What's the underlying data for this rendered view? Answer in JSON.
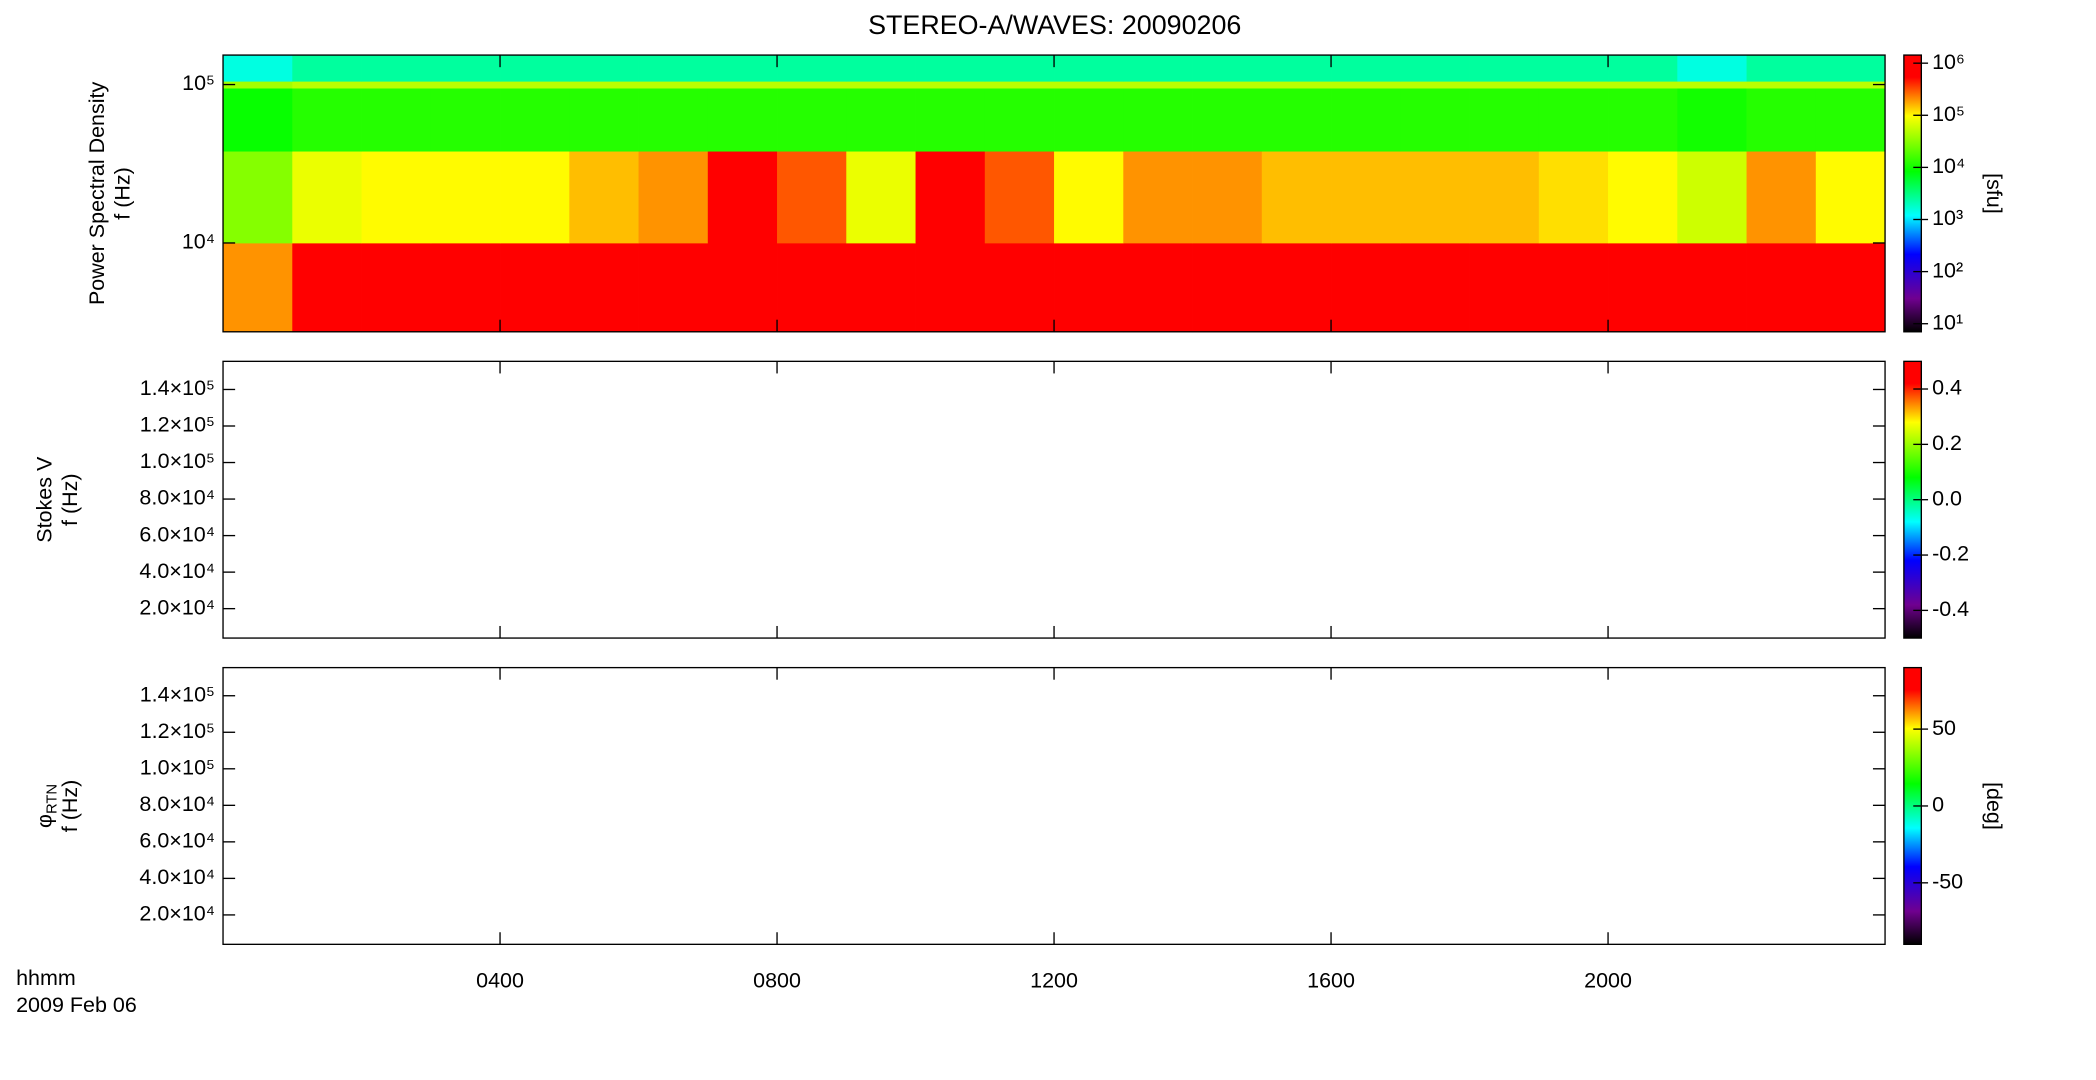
{
  "title": "STEREO-A/WAVES: 20090206",
  "chart_data": [
    {
      "type": "heatmap",
      "y_label": "Power Spectral Density",
      "y_unit_label": "f (Hz)",
      "ylog": true,
      "ylim": [
        2750,
        153500
      ],
      "yticks": [
        {
          "value": 10000,
          "label": "10⁴"
        },
        {
          "value": 100000,
          "label": "10⁵"
        }
      ],
      "xlim": [
        0,
        24
      ],
      "x_bins": [
        0,
        1,
        2,
        3,
        4,
        5,
        6,
        7,
        8,
        9,
        10,
        11,
        12,
        13,
        14,
        15,
        16,
        17,
        18,
        19,
        20,
        21,
        22,
        23,
        24
      ],
      "y_bins": [
        2750,
        10000,
        38000,
        95000,
        105000,
        153500
      ],
      "z": [
        [
          200000,
          1000000,
          1000000,
          1000000,
          1000000,
          1000000,
          1000000,
          1000000,
          1000000,
          1000000,
          1000000,
          1000000,
          1000000,
          1000000,
          1000000,
          1000000,
          1000000,
          1000000,
          1000000,
          1000000,
          1000000,
          1000000,
          1000000,
          1000000
        ],
        [
          30000,
          80000,
          100000,
          100000,
          100000,
          150000,
          200000,
          600000,
          300000,
          80000,
          600000,
          300000,
          100000,
          200000,
          200000,
          150000,
          150000,
          150000,
          150000,
          120000,
          100000,
          60000,
          200000,
          100000
        ],
        [
          9000,
          12000,
          12000,
          12000,
          12000,
          12000,
          12000,
          12000,
          12000,
          12000,
          12000,
          12000,
          12000,
          12000,
          12000,
          12000,
          12000,
          12000,
          12000,
          12000,
          12000,
          10000,
          12000,
          12000
        ],
        [
          40000,
          50000,
          50000,
          50000,
          50000,
          50000,
          50000,
          50000,
          50000,
          50000,
          50000,
          50000,
          50000,
          50000,
          50000,
          50000,
          50000,
          50000,
          50000,
          50000,
          50000,
          50000,
          50000,
          50000
        ],
        [
          1500,
          2500,
          2500,
          2500,
          2500,
          2500,
          2500,
          2500,
          2500,
          2500,
          2500,
          2500,
          2500,
          2500,
          2500,
          2500,
          2500,
          2500,
          2500,
          2500,
          2500,
          1500,
          2500,
          2500
        ]
      ],
      "colormap": "rainbow",
      "zlog": true,
      "zlim": [
        7,
        1430000
      ],
      "zticks": [
        {
          "value": 10,
          "label": "10¹"
        },
        {
          "value": 100,
          "label": "10²"
        },
        {
          "value": 1000,
          "label": "10³"
        },
        {
          "value": 10000,
          "label": "10⁴"
        },
        {
          "value": 100000,
          "label": "10⁵"
        },
        {
          "value": 1000000,
          "label": "10⁶"
        }
      ],
      "colorbar_label": "[sfu]"
    },
    {
      "type": "heatmap",
      "y_label": "Stokes V",
      "y_unit_label": "f (Hz)",
      "ylim": [
        3900,
        155400
      ],
      "yticks": [
        {
          "value": 20000,
          "label": "2.0×10⁴"
        },
        {
          "value": 40000,
          "label": "4.0×10⁴"
        },
        {
          "value": 60000,
          "label": "6.0×10⁴"
        },
        {
          "value": 80000,
          "label": "8.0×10⁴"
        },
        {
          "value": 100000,
          "label": "1.0×10⁵"
        },
        {
          "value": 120000,
          "label": "1.2×10⁵"
        },
        {
          "value": 140000,
          "label": "1.4×10⁵"
        }
      ],
      "xlim": [
        0,
        24
      ],
      "colormap": "rainbow",
      "zlim": [
        -0.5,
        0.5
      ],
      "zticks": [
        -0.4,
        -0.2,
        {
          "value": 0,
          "label": "0.0"
        },
        0.2,
        0.4
      ]
    },
    {
      "type": "heatmap",
      "y_label_symbol": "φ",
      "y_label_subscript": "RTN",
      "y_unit_label": "f (Hz)",
      "ylim": [
        3900,
        155400
      ],
      "yticks": [
        {
          "value": 20000,
          "label": "2.0×10⁴"
        },
        {
          "value": 40000,
          "label": "4.0×10⁴"
        },
        {
          "value": 60000,
          "label": "6.0×10⁴"
        },
        {
          "value": 80000,
          "label": "8.0×10⁴"
        },
        {
          "value": 100000,
          "label": "1.0×10⁵"
        },
        {
          "value": 120000,
          "label": "1.2×10⁵"
        },
        {
          "value": 140000,
          "label": "1.4×10⁵"
        }
      ],
      "xlim": [
        0,
        24
      ],
      "xticks": [
        {
          "value": 4,
          "label": "0400"
        },
        {
          "value": 8,
          "label": "0800"
        },
        {
          "value": 12,
          "label": "1200"
        },
        {
          "value": 16,
          "label": "1600"
        },
        {
          "value": 20,
          "label": "2000"
        }
      ],
      "x_label": "hhmm",
      "date_label": "2009 Feb 06",
      "colormap": "rainbow",
      "zlim": [
        -90,
        90
      ],
      "zticks": [
        -50,
        0,
        50
      ],
      "colorbar_label": "[deg]"
    }
  ]
}
